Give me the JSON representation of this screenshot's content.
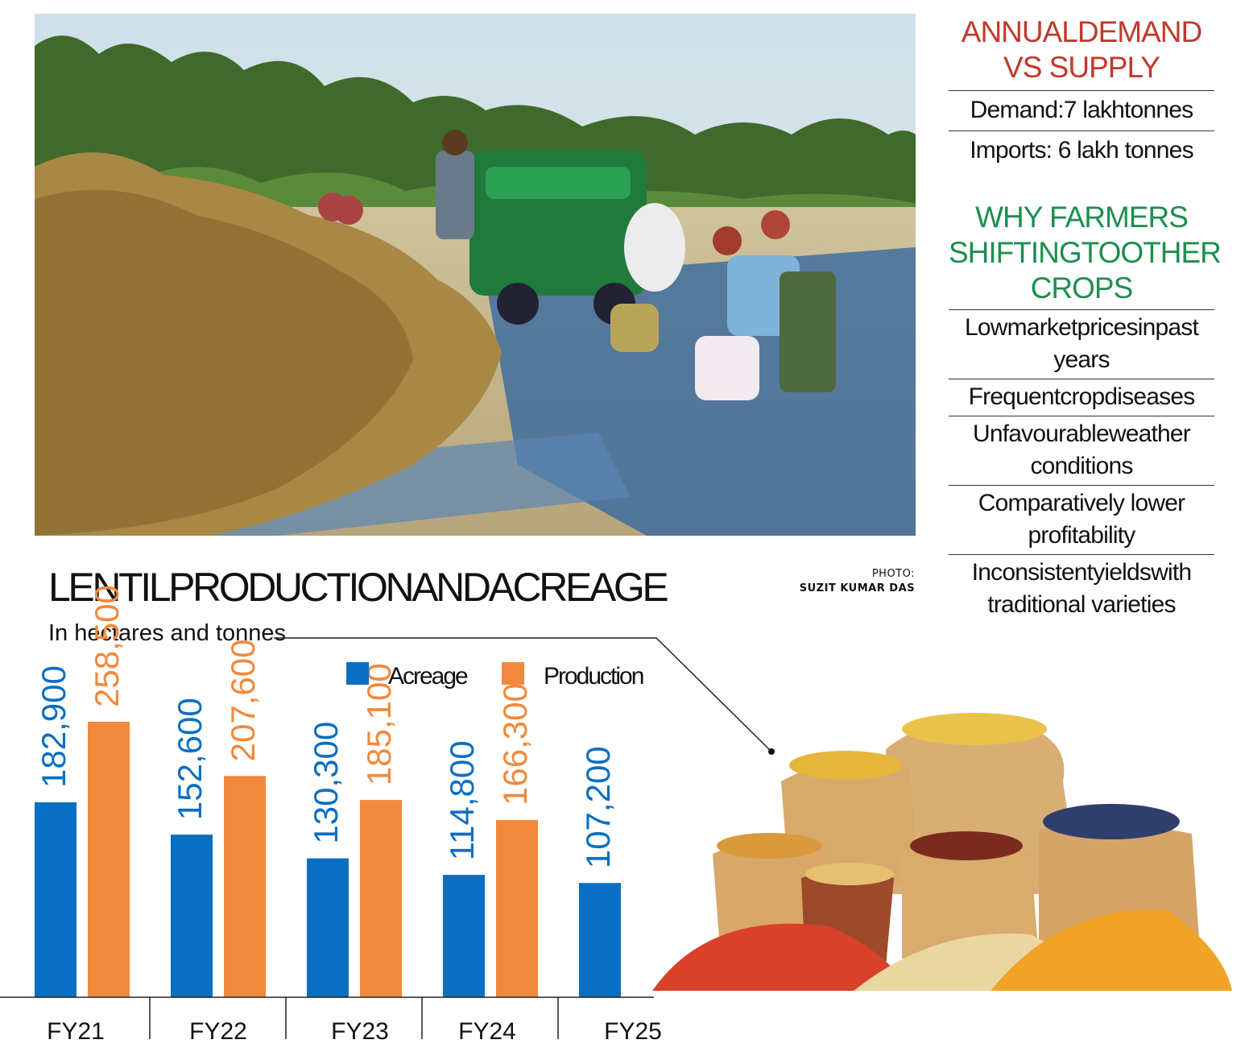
{
  "photo": {
    "alt": "",
    "credit_line1": "PHOTO:",
    "credit_line2": "SUZIT KUMAR DAS"
  },
  "panel": {
    "heading1": [
      "ANNUALDEMAND",
      "VS SUPPLY"
    ],
    "stats": [
      "Demand:7 lakhtonnes",
      "Imports: 6 lakh tonnes"
    ],
    "heading2": [
      "WHY FARMERS",
      "SHIFTINGTOOTHER",
      "CROPS"
    ],
    "reasons": [
      [
        "Lowmarketpricesinpast",
        "years"
      ],
      [
        "Frequentcropdiseases"
      ],
      [
        "Unfavourableweather",
        "conditions"
      ],
      [
        "Comparatively lower",
        "profitability"
      ],
      [
        "Inconsistentyieldswith",
        "traditional varieties"
      ]
    ],
    "heading1_color": "#c0392b",
    "heading2_color": "#1e8e4f"
  },
  "chart_data": {
    "type": "bar",
    "title": "LENTILPRODUCTIONANDACREAGE",
    "subtitle": "In hectares and tonnes",
    "categories": [
      "FY21",
      "FY22",
      "FY23",
      "FY24",
      "FY25"
    ],
    "series": [
      {
        "name": "Acreage",
        "color": "#0a6fc2",
        "values": [
          182900,
          152600,
          130300,
          114800,
          107200
        ],
        "labels": [
          "182,900",
          "152,600",
          "130,300",
          "114,800",
          "107,200"
        ]
      },
      {
        "name": "Production",
        "color": "#f0893c",
        "values": [
          258500,
          207600,
          185100,
          166300,
          null
        ],
        "labels": [
          "258,500",
          "207,600",
          "185,100",
          "166,300",
          ""
        ]
      }
    ],
    "legend_position": "top-right",
    "grid": false,
    "ylim": [
      0,
      300000
    ]
  }
}
